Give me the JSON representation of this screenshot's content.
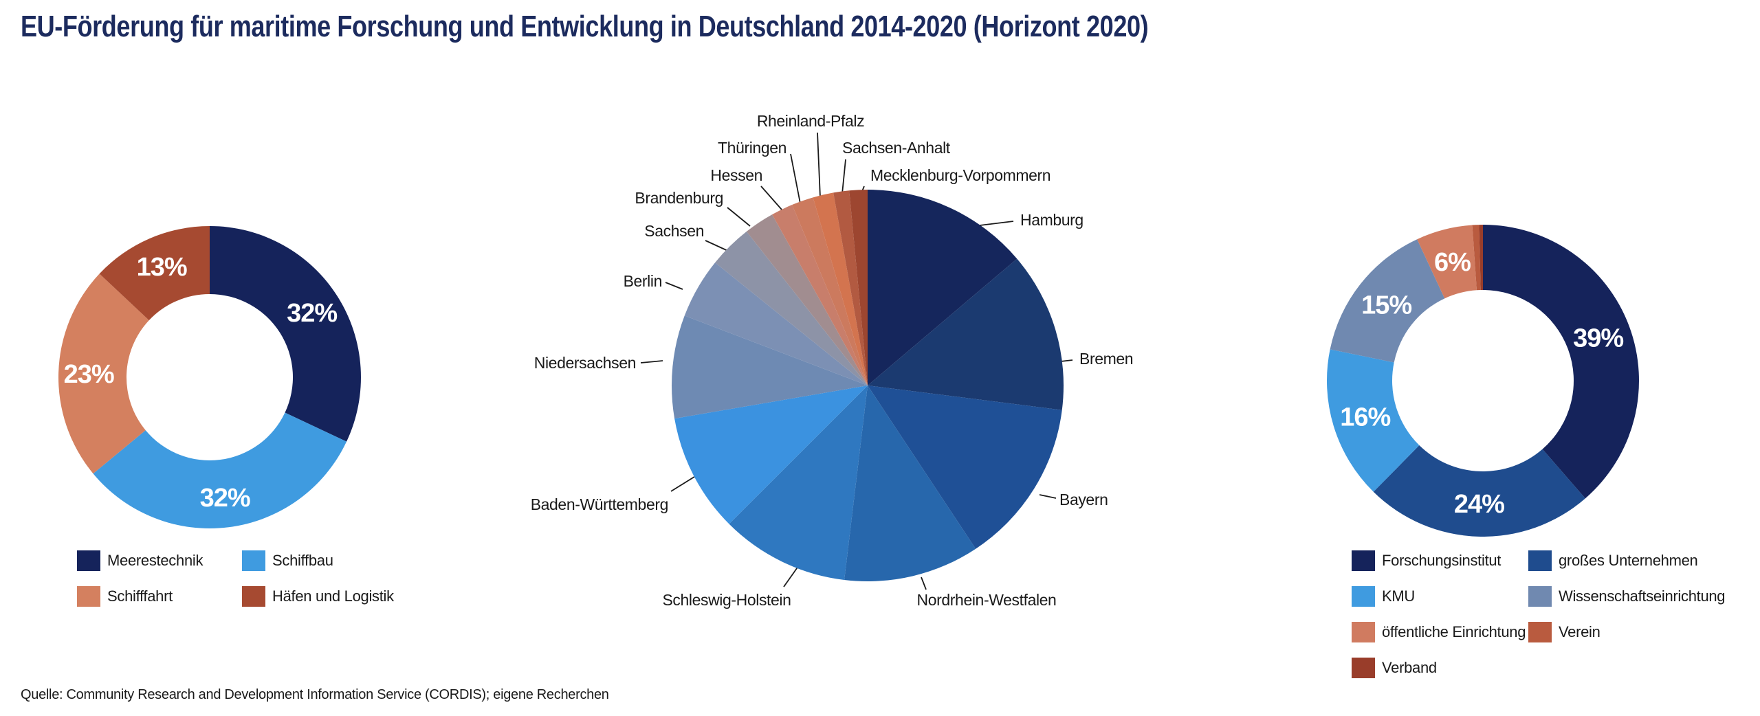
{
  "title": "EU-Förderung für maritime Forschung und Entwicklung in Deutschland 2014-2020 (Horizont 2020)",
  "source": "Quelle: Community Research and Development Information Service (CORDIS); eigene Recherchen",
  "colors": {
    "title": "#1c2b5e",
    "text": "#1a1a1a",
    "background": "#ffffff"
  },
  "chart_data": [
    {
      "id": "sectors",
      "type": "pie",
      "style": "donut",
      "legend_position": "below-left",
      "slices": [
        {
          "label": "Meerestechnik",
          "value": 32,
          "display": "32%",
          "color": "#15235b"
        },
        {
          "label": "Schiffbau",
          "value": 32,
          "display": "32%",
          "color": "#3f9be0"
        },
        {
          "label": "Schifffahrt",
          "value": 23,
          "display": "23%",
          "color": "#d4805f"
        },
        {
          "label": "Häfen und Logistik",
          "value": 13,
          "display": "13%",
          "color": "#a64a31"
        }
      ]
    },
    {
      "id": "bundeslaender",
      "type": "pie",
      "style": "pie",
      "labels": "outside-with-leader-lines",
      "values_note": "no percentages printed in figure; values estimated from slice angles",
      "slices": [
        {
          "label": "Hamburg",
          "value": 13.8,
          "color": "#15265c"
        },
        {
          "label": "Bremen",
          "value": 13.2,
          "color": "#1b3a70"
        },
        {
          "label": "Bayern",
          "value": 13.7,
          "color": "#1f5096"
        },
        {
          "label": "Nordrhein-Westfalen",
          "value": 11.2,
          "color": "#2767ac"
        },
        {
          "label": "Schleswig-Holstein",
          "value": 10.6,
          "color": "#2f78c0"
        },
        {
          "label": "Baden-Württemberg",
          "value": 9.8,
          "color": "#3b92e0"
        },
        {
          "label": "Niedersachsen",
          "value": 8.5,
          "color": "#6e8ab3"
        },
        {
          "label": "Berlin",
          "value": 5.0,
          "color": "#7c90b4"
        },
        {
          "label": "Sachsen",
          "value": 3.6,
          "color": "#8d93a7"
        },
        {
          "label": "Brandenburg",
          "value": 2.5,
          "color": "#a18d90"
        },
        {
          "label": "Hessen",
          "value": 1.8,
          "color": "#c87e6b"
        },
        {
          "label": "Thüringen",
          "value": 1.8,
          "color": "#cc7a5e"
        },
        {
          "label": "Rheinland-Pfalz",
          "value": 1.7,
          "color": "#d3744f"
        },
        {
          "label": "Sachsen-Anhalt",
          "value": 1.3,
          "color": "#b25a41"
        },
        {
          "label": "Mecklenburg-Vorpommern",
          "value": 1.5,
          "color": "#9d4630"
        }
      ]
    },
    {
      "id": "organisations",
      "type": "pie",
      "style": "donut",
      "legend_position": "below-right",
      "slices": [
        {
          "label": "Forschungsinstitut",
          "value": 39,
          "display": "39%",
          "color": "#15235b"
        },
        {
          "label": "großes Unternehmen",
          "value": 24,
          "display": "24%",
          "color": "#1f4c8e"
        },
        {
          "label": "KMU",
          "value": 16,
          "display": "16%",
          "color": "#3f9be0"
        },
        {
          "label": "Wissenschaftseinrichtung",
          "value": 15,
          "display": "15%",
          "color": "#7089b0"
        },
        {
          "label": "öffentliche Einrichtung",
          "value": 5.9,
          "display": "6%",
          "color": "#d07b60"
        },
        {
          "label": "Verein",
          "value": 0.7,
          "display": "",
          "color": "#b95b3f"
        },
        {
          "label": "Verband",
          "value": 0.4,
          "display": "",
          "color": "#993d2a"
        }
      ]
    }
  ]
}
